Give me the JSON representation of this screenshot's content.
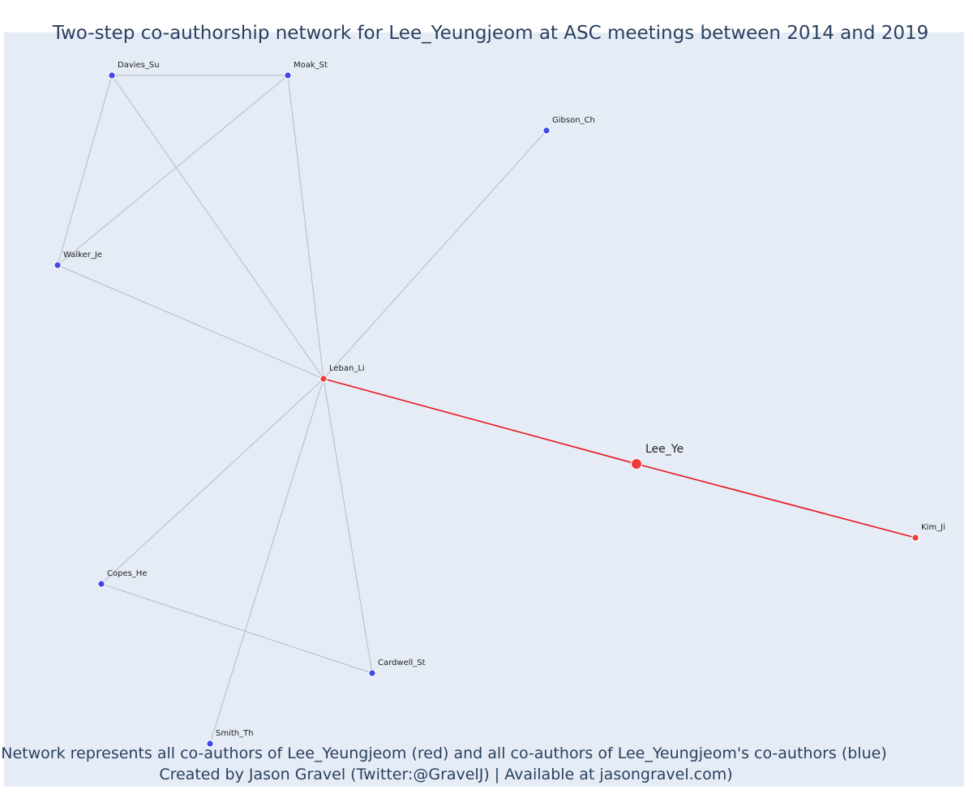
{
  "title": "Two-step co-authorship network for Lee_Yeungjeom at ASC meetings between 2014 and 2019",
  "caption_line1": "Network represents all co-authors of Lee_Yeungjeom (red) and all co-authors of Lee_Yeungjeom's co-authors (blue)",
  "caption_line2": "Created by Jason Gravel (Twitter:@GravelJ) | Available at jasongravel.com)",
  "colors": {
    "background": "#e5ecf6",
    "coauthor": "#ef3b3b",
    "second_step": "#3f48e8",
    "edge": "#b5b9c8",
    "focal_edge": "#e8151b",
    "text": "#2a3f5f"
  },
  "nodes": [
    {
      "id": "Lee_Ye",
      "label": "Lee_Ye",
      "group": "focal"
    },
    {
      "id": "Leban_Li",
      "label": "Leban_Li",
      "group": "coauthor"
    },
    {
      "id": "Kim_Ji",
      "label": "Kim_Ji",
      "group": "coauthor"
    },
    {
      "id": "Davies_Su",
      "label": "Davies_Su",
      "group": "second_step"
    },
    {
      "id": "Moak_St",
      "label": "Moak_St",
      "group": "second_step"
    },
    {
      "id": "Gibson_Ch",
      "label": "Gibson_Ch",
      "group": "second_step"
    },
    {
      "id": "Walker_Je",
      "label": "Walker_Je",
      "group": "second_step"
    },
    {
      "id": "Copes_He",
      "label": "Copes_He",
      "group": "second_step"
    },
    {
      "id": "Cardwell_St",
      "label": "Cardwell_St",
      "group": "second_step"
    },
    {
      "id": "Smith_Th",
      "label": "Smith_Th",
      "group": "second_step"
    }
  ],
  "edges": [
    [
      "Davies_Su",
      "Moak_St"
    ],
    [
      "Davies_Su",
      "Walker_Je"
    ],
    [
      "Davies_Su",
      "Leban_Li"
    ],
    [
      "Moak_St",
      "Walker_Je"
    ],
    [
      "Moak_St",
      "Leban_Li"
    ],
    [
      "Walker_Je",
      "Leban_Li"
    ],
    [
      "Gibson_Ch",
      "Leban_Li"
    ],
    [
      "Leban_Li",
      "Copes_He"
    ],
    [
      "Leban_Li",
      "Cardwell_St"
    ],
    [
      "Leban_Li",
      "Smith_Th"
    ],
    [
      "Copes_He",
      "Cardwell_St"
    ],
    [
      "Leban_Li",
      "Lee_Ye",
      "focal"
    ],
    [
      "Lee_Ye",
      "Kim_Ji",
      "focal"
    ]
  ]
}
